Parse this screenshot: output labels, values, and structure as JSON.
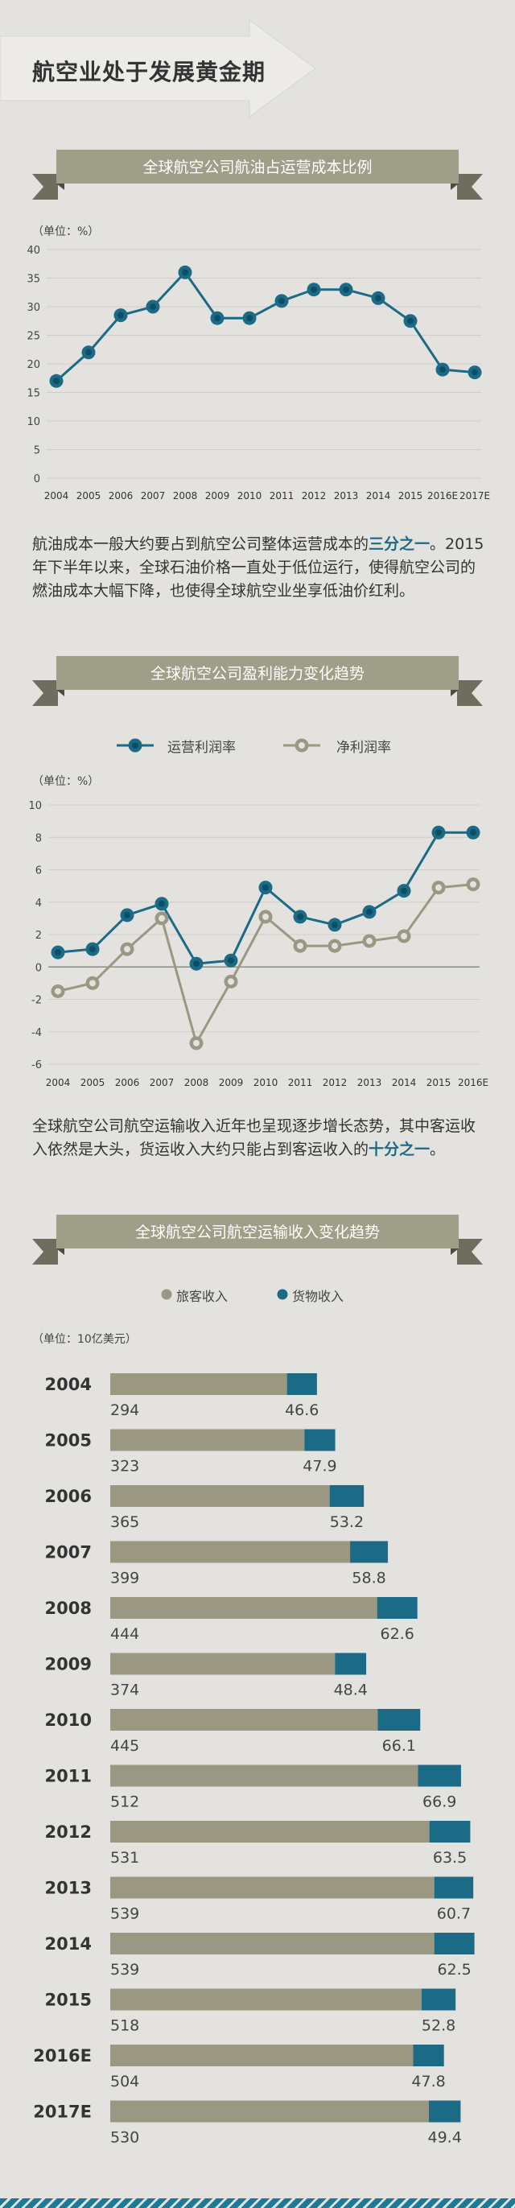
{
  "page_title": "航空业处于发展黄金期",
  "colors": {
    "background": "#e3e2de",
    "ribbon": "#9f9e88",
    "accent_blue": "#1b6a86",
    "khaki": "#9a9882"
  },
  "section1": {
    "heading": "全球航空公司航油占运营成本比例",
    "unit": "（单位：%）",
    "paragraph_before": "航油成本一般大约要占到航空公司整体运营成本的",
    "paragraph_highlight": "三分之一",
    "paragraph_after": "。2015年下半年以来，全球石油价格一直处于低位运行，使得航空公司的燃油成本大幅下降，也使得全球航空业坐享低油价红利。"
  },
  "section2": {
    "heading": "全球航空公司盈利能力变化趋势",
    "unit": "（单位：%）",
    "legend_operating": "运营利润率",
    "legend_net": "净利润率",
    "paragraph_before": "全球航空公司航空运输收入近年也呈现逐步增长态势，其中客运收入依然是大头，货运收入大约只能占到客运收入的",
    "paragraph_highlight": "十分之一",
    "paragraph_after": "。"
  },
  "section3": {
    "heading": "全球航空公司航空运输收入变化趋势",
    "unit": "（单位：10亿美元）",
    "legend_passenger": "旅客收入",
    "legend_cargo": "货物收入"
  },
  "chart_data": [
    {
      "type": "line",
      "x": [
        "2004",
        "2005",
        "2006",
        "2007",
        "2008",
        "2009",
        "2010",
        "2011",
        "2012",
        "2013",
        "2014",
        "2015",
        "2016E",
        "2017E"
      ],
      "series": [
        {
          "values": [
            17,
            22,
            28.5,
            30,
            36,
            28,
            28,
            31,
            33,
            33,
            31.5,
            27.5,
            19,
            18.5
          ]
        }
      ],
      "ylim": [
        0,
        40
      ],
      "yticks": [
        0,
        5,
        10,
        15,
        20,
        25,
        30,
        35,
        40
      ],
      "grid": true
    },
    {
      "type": "line",
      "x": [
        "2004",
        "2005",
        "2006",
        "2007",
        "2008",
        "2009",
        "2010",
        "2011",
        "2012",
        "2013",
        "2014",
        "2015",
        "2016E"
      ],
      "series": [
        {
          "name": "运营利润率",
          "values": [
            0.9,
            1.1,
            3.2,
            3.9,
            0.2,
            0.4,
            4.9,
            3.1,
            2.6,
            3.4,
            4.7,
            8.3,
            8.3
          ]
        },
        {
          "name": "净利润率",
          "values": [
            -1.5,
            -1.0,
            1.1,
            3.0,
            -4.7,
            -0.9,
            3.1,
            1.3,
            1.3,
            1.6,
            1.9,
            4.9,
            5.1
          ]
        }
      ],
      "ylim": [
        -6,
        10
      ],
      "yticks": [
        -6,
        -4,
        -2,
        0,
        2,
        4,
        6,
        8,
        10
      ],
      "grid": true
    },
    {
      "type": "bar",
      "orientation": "horizontal",
      "stacked": true,
      "categories": [
        "2004",
        "2005",
        "2006",
        "2007",
        "2008",
        "2009",
        "2010",
        "2011",
        "2012",
        "2013",
        "2014",
        "2015",
        "2016E",
        "2017E"
      ],
      "series": [
        {
          "name": "旅客收入",
          "values": [
            294,
            323,
            365,
            399,
            444,
            374,
            445,
            512,
            531,
            539,
            539,
            518,
            504,
            530
          ],
          "labels": [
            "294",
            "323",
            "365",
            "399",
            "444",
            "374",
            "445",
            "512",
            "531",
            "539",
            "539",
            "518",
            "504",
            "530"
          ]
        },
        {
          "name": "货物收入",
          "values": [
            46.6,
            47.9,
            53.2,
            58.8,
            62.6,
            48.4,
            66.1,
            66.9,
            63.5,
            60.7,
            62.5,
            52.8,
            47.8,
            49.4
          ],
          "labels": [
            "46.6",
            "47.9",
            "53.2",
            "58.8",
            "62.6",
            "48.4",
            "66.1",
            "66.9",
            "63.5",
            "60.7",
            "62.5",
            "52.8",
            "47.8",
            "49.4"
          ]
        }
      ]
    }
  ]
}
